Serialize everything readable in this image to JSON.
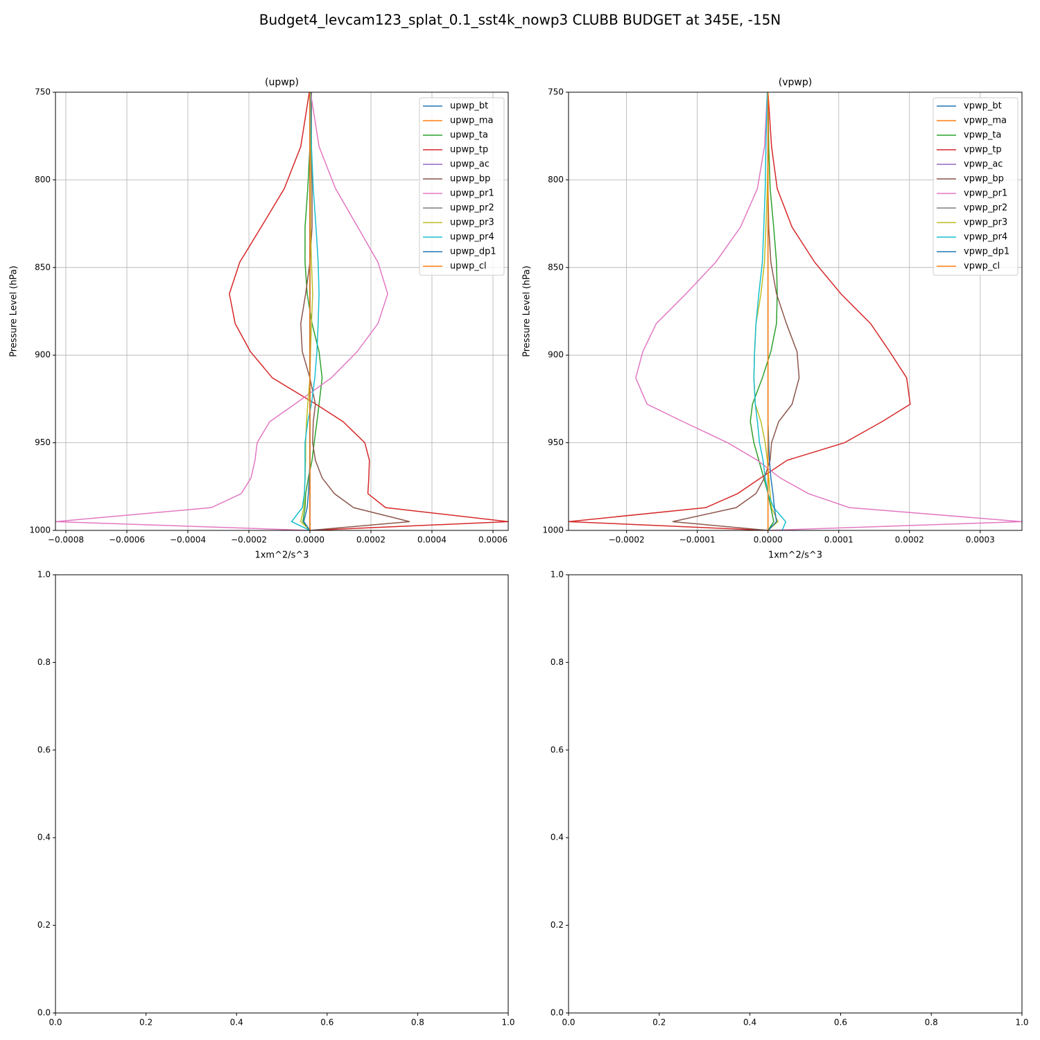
{
  "title": "Budget4_levcam123_splat_0.1_sst4k_nowp3 CLUBB BUDGET at 345E, -15N",
  "chart_data": [
    {
      "type": "line",
      "title": "(upwp)",
      "xlabel": "1xm^2/s^3",
      "ylabel": "Pressure Level (hPa)",
      "grid": true,
      "legend": "upper right",
      "xlim": [
        -0.000834,
        0.00065
      ],
      "ylim": [
        1000,
        750
      ],
      "xticks": [
        {
          "value": -0.0008,
          "label": "−0.0008"
        },
        {
          "value": -0.0006,
          "label": "−0.0006"
        },
        {
          "value": -0.0004,
          "label": "−0.0004"
        },
        {
          "value": -0.0002,
          "label": "−0.0002"
        },
        {
          "value": 0,
          "label": "0.0000"
        },
        {
          "value": 0.0002,
          "label": "0.0002"
        },
        {
          "value": 0.0004,
          "label": "0.0004"
        },
        {
          "value": 0.0006,
          "label": "0.0006"
        }
      ],
      "yticks": [
        750,
        800,
        850,
        900,
        950,
        1000
      ],
      "y": [
        750,
        781,
        805,
        827,
        847,
        865,
        882,
        898,
        913,
        928,
        938,
        950,
        960,
        970,
        979,
        987,
        995,
        1000
      ],
      "series": [
        {
          "name": "upwp_bt",
          "color": "#1f77b4",
          "values": [
            0,
            0,
            0,
            0,
            0,
            0,
            0,
            0,
            0,
            0,
            0,
            0,
            0,
            0,
            0,
            0,
            0,
            0
          ]
        },
        {
          "name": "upwp_ma",
          "color": "#ff7f0e",
          "values": [
            0,
            0,
            0,
            0,
            0,
            0,
            0,
            0,
            0,
            0,
            0,
            0,
            0,
            0,
            0,
            0,
            0,
            0
          ]
        },
        {
          "name": "upwp_ta",
          "color": "#2ca02c",
          "values": [
            2e-06,
            0,
            -7e-06,
            -1.6e-05,
            -1.6e-05,
            -9e-06,
            7e-06,
            3e-05,
            4e-05,
            3e-05,
            2.3e-05,
            1.4e-05,
            7e-06,
            -5e-06,
            -1.4e-05,
            -1.6e-05,
            -2.3e-05,
            0
          ]
        },
        {
          "name": "upwp_tp",
          "color": "#d62728",
          "values": [
            -2e-06,
            -3e-05,
            -8.4e-05,
            -0.00016,
            -0.00023,
            -0.000264,
            -0.000245,
            -0.000195,
            -0.000123,
            2e-05,
            0.000109,
            0.00018,
            0.000195,
            0.000193,
            0.00019,
            0.000248,
            0.00065,
            0
          ]
        },
        {
          "name": "upwp_ac",
          "color": "#9467bd",
          "values": [
            0,
            0,
            0,
            0,
            0,
            0,
            0,
            0,
            0,
            0,
            0,
            0,
            0,
            0,
            0,
            0,
            0,
            0
          ]
        },
        {
          "name": "upwp_bp",
          "color": "#8c564b",
          "values": [
            5e-06,
            5e-06,
            7e-06,
            7e-06,
            0,
            -1.4e-05,
            -3e-05,
            -2.5e-05,
            0,
            1.8e-05,
            1.1e-05,
            9e-06,
            1.8e-05,
            4e-05,
            8e-05,
            0.000143,
            0.000327,
            0
          ]
        },
        {
          "name": "upwp_pr1",
          "color": "#e377c2",
          "values": [
            2e-06,
            3e-05,
            8.4e-05,
            0.000157,
            0.000223,
            0.000255,
            0.000223,
            0.000155,
            7e-05,
            -5e-05,
            -0.000132,
            -0.000173,
            -0.00018,
            -0.000193,
            -0.000225,
            -0.000323,
            -0.000834,
            0
          ]
        },
        {
          "name": "upwp_pr2",
          "color": "#7f7f7f",
          "values": [
            0,
            0,
            0,
            0,
            0,
            0,
            0,
            0,
            0,
            0,
            0,
            0,
            0,
            0,
            0,
            0,
            0,
            0
          ]
        },
        {
          "name": "upwp_pr3",
          "color": "#bcbd22",
          "values": [
            2e-06,
            2e-06,
            2e-06,
            2e-06,
            5e-06,
            9e-06,
            5e-06,
            2e-06,
            0,
            -7e-06,
            -1.1e-05,
            -1.4e-05,
            -1.4e-05,
            -1.6e-05,
            -1.8e-05,
            -2e-05,
            -3e-05,
            0
          ]
        },
        {
          "name": "upwp_pr4",
          "color": "#17becf",
          "values": [
            2e-06,
            5e-06,
            1.1e-05,
            2e-05,
            2.7e-05,
            3e-05,
            2.7e-05,
            2.3e-05,
            1.6e-05,
            5e-06,
            -7e-06,
            -1.6e-05,
            -1.6e-05,
            -1.6e-05,
            -1.8e-05,
            -2.5e-05,
            -6e-05,
            0
          ]
        },
        {
          "name": "upwp_dp1",
          "color": "#1f77b4",
          "values": [
            0,
            0,
            0,
            0,
            0,
            0,
            0,
            0,
            0,
            0,
            0,
            0,
            0,
            -2e-06,
            -5e-06,
            -9e-06,
            -2e-05,
            0
          ]
        },
        {
          "name": "upwp_cl",
          "color": "#ff7f0e",
          "values": [
            0,
            0,
            0,
            0,
            0,
            0,
            0,
            0,
            0,
            0,
            0,
            0,
            0,
            0,
            0,
            0,
            0,
            0
          ]
        }
      ]
    },
    {
      "type": "line",
      "title": "(vpwp)",
      "xlabel": "1xm^2/s^3",
      "ylabel": "Pressure Level (hPa)",
      "grid": true,
      "legend": "upper right",
      "xlim": [
        -0.000282,
        0.000359
      ],
      "ylim": [
        1000,
        750
      ],
      "xticks": [
        {
          "value": -0.0002,
          "label": "−0.0002"
        },
        {
          "value": -0.0001,
          "label": "−0.0001"
        },
        {
          "value": 0,
          "label": "0.0000"
        },
        {
          "value": 0.0001,
          "label": "0.0001"
        },
        {
          "value": 0.0002,
          "label": "0.0002"
        },
        {
          "value": 0.0003,
          "label": "0.0003"
        }
      ],
      "yticks": [
        750,
        800,
        850,
        900,
        950,
        1000
      ],
      "y": [
        750,
        781,
        805,
        827,
        847,
        865,
        882,
        898,
        913,
        928,
        938,
        950,
        960,
        970,
        979,
        987,
        995,
        1000
      ],
      "series": [
        {
          "name": "vpwp_bt",
          "color": "#1f77b4",
          "values": [
            0,
            0,
            0,
            0,
            0,
            0,
            0,
            0,
            0,
            0,
            0,
            0,
            0,
            0,
            0,
            0,
            0,
            0
          ]
        },
        {
          "name": "vpwp_ma",
          "color": "#ff7f0e",
          "values": [
            0,
            0,
            0,
            0,
            0,
            0,
            0,
            0,
            0,
            0,
            0,
            0,
            0,
            0,
            0,
            0,
            0,
            0
          ]
        },
        {
          "name": "vpwp_ta",
          "color": "#2ca02c",
          "values": [
            0,
            1e-06,
            3e-06,
            8e-06,
            1.2e-05,
            1.3e-05,
            1.2e-05,
            4e-06,
            -8e-06,
            -2.2e-05,
            -2.5e-05,
            -2e-05,
            -1.3e-05,
            -6e-06,
            0,
            4e-06,
            8e-06,
            0
          ]
        },
        {
          "name": "vpwp_tp",
          "color": "#d62728",
          "values": [
            0,
            5e-06,
            1.3e-05,
            3.4e-05,
            6.6e-05,
            0.000103,
            0.000145,
            0.000172,
            0.000196,
            0.000201,
            0.000161,
            0.000108,
            2.7e-05,
            -1e-05,
            -4.3e-05,
            -8.8e-05,
            -0.000282,
            0
          ]
        },
        {
          "name": "vpwp_ac",
          "color": "#9467bd",
          "values": [
            0,
            0,
            0,
            0,
            0,
            0,
            0,
            0,
            0,
            0,
            0,
            0,
            0,
            0,
            0,
            0,
            0,
            0
          ]
        },
        {
          "name": "vpwp_bp",
          "color": "#8c564b",
          "values": [
            0,
            0,
            0,
            1e-06,
            4e-06,
            1.2e-05,
            2.6e-05,
            4.1e-05,
            4.4e-05,
            3.4e-05,
            1.5e-05,
            5e-06,
            3e-06,
            -5e-06,
            -1.7e-05,
            -4.5e-05,
            -0.000135,
            0
          ]
        },
        {
          "name": "vpwp_pr1",
          "color": "#e377c2",
          "values": [
            -1e-06,
            -5e-06,
            -1.5e-05,
            -3.9e-05,
            -7.4e-05,
            -0.000116,
            -0.000158,
            -0.000177,
            -0.000187,
            -0.000171,
            -0.00012,
            -5.7e-05,
            -1.5e-05,
            1.7e-05,
            5.7e-05,
            0.000115,
            0.000359,
            0
          ]
        },
        {
          "name": "vpwp_pr2",
          "color": "#7f7f7f",
          "values": [
            0,
            0,
            0,
            0,
            0,
            0,
            0,
            0,
            0,
            0,
            0,
            0,
            0,
            0,
            0,
            0,
            0,
            0
          ]
        },
        {
          "name": "vpwp_pr3",
          "color": "#bcbd22",
          "values": [
            0,
            0,
            -1e-06,
            -3e-06,
            -5e-06,
            -1e-05,
            -1.7e-05,
            -1.9e-05,
            -2e-05,
            -1.8e-05,
            -1e-05,
            -4e-06,
            -1e-06,
            1e-06,
            3e-06,
            5e-06,
            1.4e-05,
            0
          ]
        },
        {
          "name": "vpwp_pr4",
          "color": "#17becf",
          "values": [
            -1e-06,
            -3e-06,
            -4e-06,
            -6e-06,
            -8e-06,
            -1.3e-05,
            -1.7e-05,
            -1.9e-05,
            -2e-05,
            -1.8e-05,
            -1.5e-05,
            -1.2e-05,
            -7e-06,
            -4e-06,
            0,
            8e-06,
            2.5e-05,
            2e-05
          ]
        },
        {
          "name": "vpwp_dp1",
          "color": "#1f77b4",
          "values": [
            0,
            0,
            0,
            0,
            0,
            0,
            0,
            0,
            0,
            0,
            0,
            1e-06,
            2e-06,
            4e-06,
            7e-06,
            9e-06,
            1.2e-05,
            0
          ]
        },
        {
          "name": "vpwp_cl",
          "color": "#ff7f0e",
          "values": [
            0,
            0,
            0,
            0,
            0,
            0,
            0,
            0,
            0,
            0,
            0,
            0,
            0,
            0,
            0,
            0,
            0,
            0
          ]
        }
      ]
    },
    {
      "type": "line",
      "xlim": [
        0,
        1
      ],
      "ylim": [
        0,
        1
      ],
      "xticks": [
        {
          "value": 0,
          "label": "0.0"
        },
        {
          "value": 0.2,
          "label": "0.2"
        },
        {
          "value": 0.4,
          "label": "0.4"
        },
        {
          "value": 0.6,
          "label": "0.6"
        },
        {
          "value": 0.8,
          "label": "0.8"
        },
        {
          "value": 1,
          "label": "1.0"
        }
      ],
      "yticks": [
        {
          "value": 0,
          "label": "0.0"
        },
        {
          "value": 0.2,
          "label": "0.2"
        },
        {
          "value": 0.4,
          "label": "0.4"
        },
        {
          "value": 0.6,
          "label": "0.6"
        },
        {
          "value": 0.8,
          "label": "0.8"
        },
        {
          "value": 1,
          "label": "1.0"
        }
      ]
    },
    {
      "type": "line",
      "xlim": [
        0,
        1
      ],
      "ylim": [
        0,
        1
      ],
      "xticks": [
        {
          "value": 0,
          "label": "0.0"
        },
        {
          "value": 0.2,
          "label": "0.2"
        },
        {
          "value": 0.4,
          "label": "0.4"
        },
        {
          "value": 0.6,
          "label": "0.6"
        },
        {
          "value": 0.8,
          "label": "0.8"
        },
        {
          "value": 1,
          "label": "1.0"
        }
      ],
      "yticks": [
        {
          "value": 0,
          "label": "0.0"
        },
        {
          "value": 0.2,
          "label": "0.2"
        },
        {
          "value": 0.4,
          "label": "0.4"
        },
        {
          "value": 0.6,
          "label": "0.6"
        },
        {
          "value": 0.8,
          "label": "0.8"
        },
        {
          "value": 1,
          "label": "1.0"
        }
      ]
    }
  ]
}
